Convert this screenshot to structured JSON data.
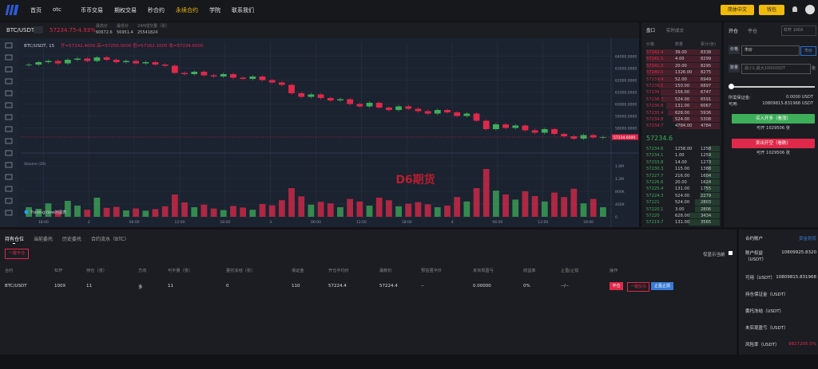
{
  "nav": {
    "items": [
      "首页",
      "otc",
      "币币交易",
      "期权交易",
      "秒合约",
      "永续合约",
      "学院",
      "联系我们"
    ],
    "active": 5,
    "language": "简体中文",
    "wallet": "钱包"
  },
  "ticker": {
    "pair": "BTC/USDT",
    "price": "57234.75",
    "change": "-4.93%",
    "stats": [
      {
        "label": "最高价",
        "value": "60672.6"
      },
      {
        "label": "最低价",
        "value": "56951.4"
      },
      {
        "label": "24H成交量（张）",
        "value": "25541824"
      }
    ]
  },
  "chart_data": {
    "type": "candlestick",
    "legend": "BTC/USDT, 15",
    "ohlc": "开=57242.4000 高=57250.0000 低=57162.1000 收=57234.6000",
    "watermark": "D6期货",
    "credit": "TradingView的图表",
    "volume_label": "Volume (20)",
    "last_label": "57234.6000",
    "up_color": "#3fae5a",
    "down_color": "#e0294a",
    "closes": [
      63300,
      63500,
      63600,
      63400,
      63700,
      63800,
      63600,
      63900,
      63700,
      63500,
      63600,
      63400,
      63500,
      63300,
      63200,
      62600,
      62500,
      62700,
      62400,
      62300,
      62500,
      62200,
      62100,
      62300,
      62000,
      61800,
      61600,
      60900,
      60600,
      60800,
      60500,
      60300,
      60400,
      60000,
      59800,
      60100,
      59700,
      59500,
      59800,
      59600,
      59400,
      59200,
      59500,
      59300,
      59000,
      59200,
      58600,
      57900,
      58300,
      58000,
      58200,
      57800,
      57600,
      57900,
      57500,
      57300,
      57100,
      57400,
      57200,
      57234.6
    ],
    "volumes": [
      300000,
      250000,
      420000,
      180000,
      500000,
      350000,
      220000,
      600000,
      280000,
      310000,
      200000,
      260000,
      190000,
      240000,
      330000,
      700000,
      450000,
      300000,
      380000,
      260000,
      210000,
      340000,
      290000,
      220000,
      400000,
      360000,
      520000,
      900000,
      640000,
      380000,
      470000,
      420000,
      300000,
      560000,
      480000,
      350000,
      600000,
      520000,
      330000,
      410000,
      460000,
      390000,
      300000,
      350000,
      620000,
      480000,
      900000,
      1500000,
      820000,
      700000,
      540000,
      800000,
      650000,
      480000,
      760000,
      620000,
      880000,
      420000,
      560000,
      300000
    ],
    "ylim": [
      56500,
      64500
    ],
    "yticks": [
      {
        "value": 58000,
        "label": "58000.0000"
      },
      {
        "value": 59000,
        "label": "59000.0000"
      },
      {
        "value": 60000,
        "label": "60000.0000"
      },
      {
        "value": 61000,
        "label": "61000.0000"
      },
      {
        "value": 62000,
        "label": "62000.0000"
      },
      {
        "value": 63000,
        "label": "63000.0000"
      },
      {
        "value": 64000,
        "label": "64000.0000"
      }
    ],
    "y2lim": [
      0,
      1800000
    ],
    "y2ticks": [
      0,
      {
        "value": 400000,
        "label": "400K"
      },
      {
        "value": 800000,
        "label": "800K"
      },
      {
        "value": 1200000,
        "label": "1.2M"
      },
      {
        "value": 1600000,
        "label": "1.6M"
      }
    ],
    "x_labels": [
      "18:00",
      "2",
      "06:00",
      "12:00",
      "18:00",
      "3",
      "06:00",
      "12:00",
      "18:00",
      "4",
      "06:00",
      "12:00",
      "18:00"
    ]
  },
  "orderbook": {
    "tabs": [
      "盘口",
      "实时成交"
    ],
    "headers": [
      "价格",
      "数量",
      "累计(张)"
    ],
    "asks": [
      [
        57242.4,
        "39.00",
        8338
      ],
      [
        57241.5,
        "4.00",
        8299
      ],
      [
        57241.3,
        "20.00",
        8295
      ],
      [
        57240.5,
        "1326.00",
        8275
      ],
      [
        57239.4,
        "52.00",
        6949
      ],
      [
        57239.1,
        "150.00",
        6897
      ],
      [
        57239,
        "156.00",
        6747
      ],
      [
        57238.7,
        "524.00",
        6591
      ],
      [
        57236.8,
        "131.00",
        6067
      ],
      [
        57235.4,
        "628.00",
        5936
      ],
      [
        57234.8,
        "524.00",
        5308
      ],
      [
        57234.7,
        "4784.00",
        4784
      ]
    ],
    "last": "57234.6",
    "bids": [
      [
        57234.6,
        "1258.00",
        1258
      ],
      [
        57234.1,
        "1.00",
        1259
      ],
      [
        57233.8,
        "14.00",
        1273
      ],
      [
        57230.3,
        "115.00",
        1388
      ],
      [
        57227.7,
        "216.00",
        1604
      ],
      [
        57226.6,
        "20.00",
        1624
      ],
      [
        57225.4,
        "131.00",
        1755
      ],
      [
        57224.3,
        "524.00",
        2279
      ],
      [
        57221,
        "524.00",
        2803
      ],
      [
        57220.1,
        "3.00",
        2806
      ],
      [
        57220,
        "628.00",
        3434
      ],
      [
        57219.7,
        "131.00",
        3565
      ]
    ]
  },
  "trade": {
    "tabs": [
      "开仓",
      "平仓"
    ],
    "leverage": "杠杆 100X",
    "price_label": "价格",
    "price_value": "市价",
    "price_button": "市价",
    "qty_label": "数量",
    "qty_placeholder": "最小1,最大1000USDT",
    "qty_unit": "张",
    "margin_label": "所需保证金:",
    "margin_value": "0.0000 USDT",
    "avail_label": "可用:",
    "avail_value": "10809815.831968 USDT",
    "buy": "买入开多（看涨）",
    "buy_avail": "可开 1029506 张",
    "sell": "卖出开空（看跌）",
    "sell_avail": "可开 1029506 张"
  },
  "positions": {
    "tabs": [
      "持有仓位",
      "当前委托",
      "历史委托",
      "合约流水（BTC）"
    ],
    "close_all": "一键平仓",
    "only_current": "仅显示当前",
    "headers": [
      "合约",
      "杠杆",
      "持仓（张）",
      "方向",
      "可平量（张）",
      "委托冻结（张）",
      "保证金",
      "开仓平均价",
      "最新价",
      "预估强平价",
      "未实现盈亏",
      "收益率",
      "止盈/止损",
      "操作"
    ],
    "rows": [
      [
        "BTC/USDT",
        "100X",
        "11",
        "多",
        "11",
        "0",
        "110",
        "57224.4",
        "57224.4",
        "--",
        "0.00000",
        "0%",
        "--/--"
      ]
    ],
    "actions": [
      "平仓",
      "一键反向",
      "止盈止损"
    ]
  },
  "account": {
    "title": "合约账户",
    "transfer": "资金划转",
    "items": [
      {
        "label": "账户权益（USDT）",
        "value": "10809925.8320"
      },
      {
        "label": "可用（USDT）",
        "value": "10809815.831968"
      },
      {
        "label": "持仓保证金（USDT）",
        "value": ""
      },
      {
        "label": "委托冻结（USDT）",
        "value": ""
      },
      {
        "label": "未实现盈亏（USDT）",
        "value": ""
      },
      {
        "label": "风险率（USDT）",
        "value": "9827205.0%"
      }
    ]
  }
}
